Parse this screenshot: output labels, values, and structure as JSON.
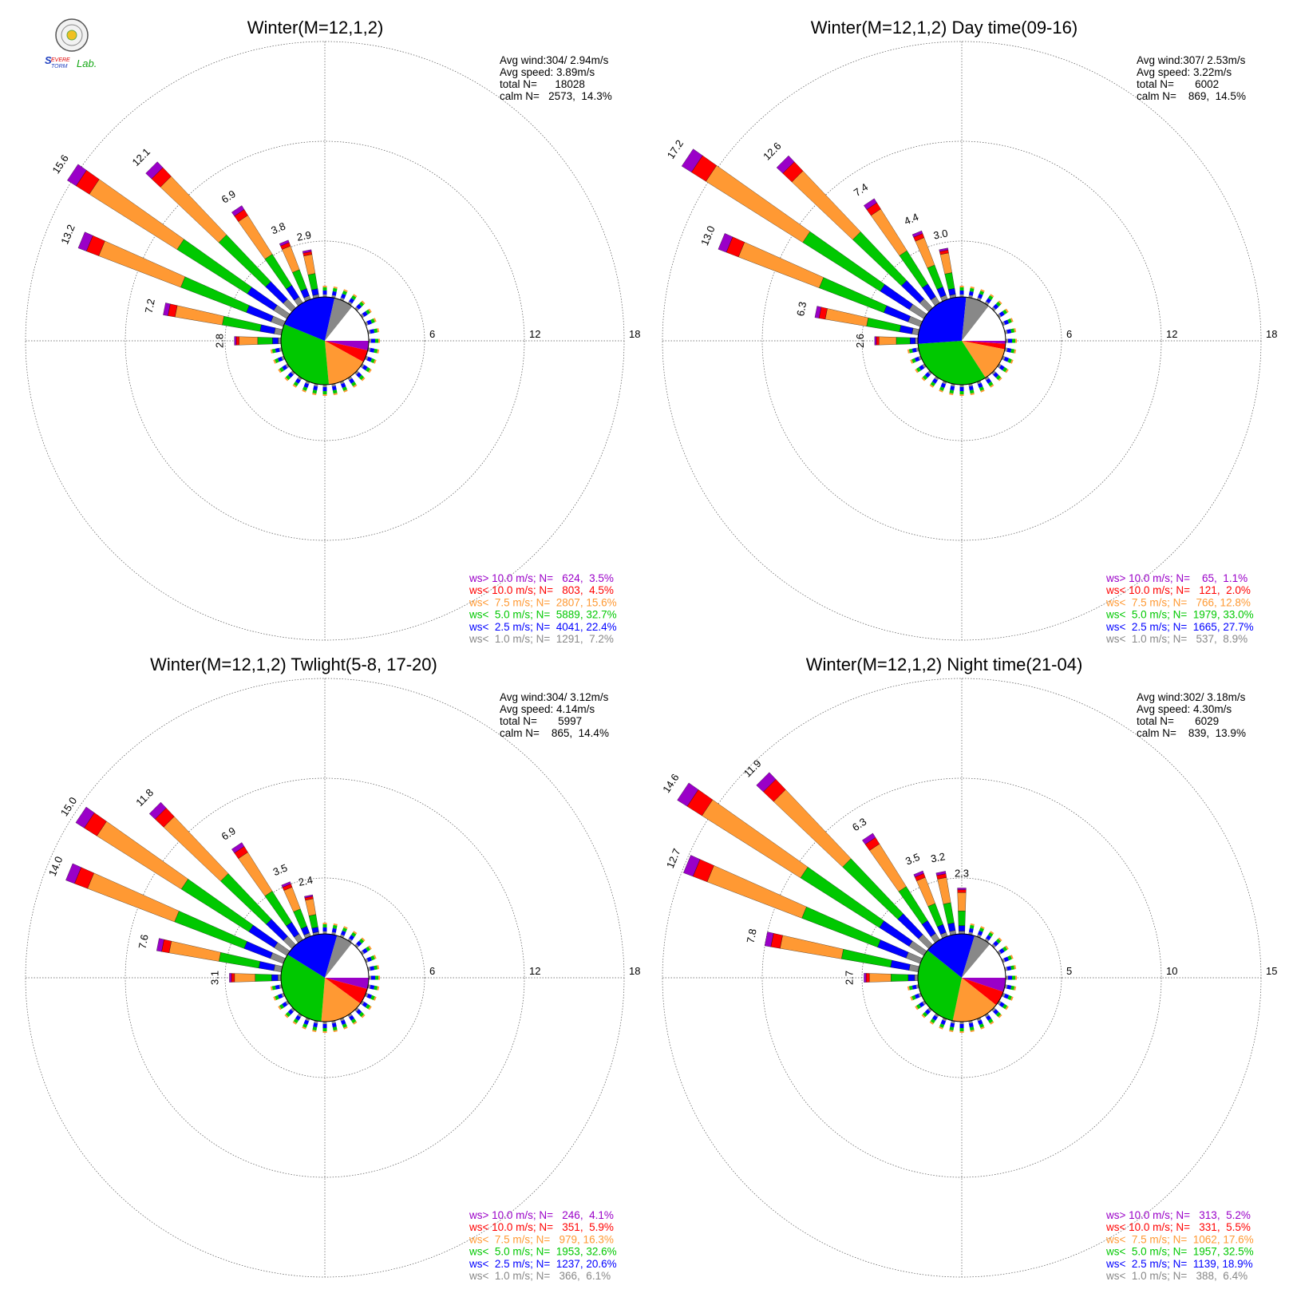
{
  "logo": {
    "text": "SEVERE STORM Lab.",
    "colors": [
      "#1f3fbf",
      "#e00000",
      "#15a815"
    ]
  },
  "colors": {
    "ws_gt_10": "#9a00c8",
    "ws_lt_10": "#ff0000",
    "ws_lt_7_5": "#ff9933",
    "ws_lt_5": "#00c800",
    "ws_lt_2_5": "#0000ff",
    "ws_lt_1": "#888888",
    "calm": "#ffffff",
    "grid": "#999999"
  },
  "chart_data": [
    {
      "type": "wind-rose",
      "title": "Winter(M=12,1,2)",
      "rings": [
        6,
        12,
        18
      ],
      "info": {
        "avg_wind": "Avg wind:304/ 2.94m/s",
        "avg_speed": "Avg speed: 3.89m/s",
        "total": "total N=      18028",
        "calm": "calm N=   2573,  14.3%"
      },
      "bar_labels": [
        {
          "dir": 292.5,
          "value": "13.2"
        },
        {
          "dir": 303.75,
          "value": "15.6"
        },
        {
          "dir": 315,
          "value": "12.1"
        },
        {
          "dir": 326.25,
          "value": "6.9"
        },
        {
          "dir": 337.5,
          "value": "3.8"
        },
        {
          "dir": 348.75,
          "value": "2.9"
        },
        {
          "dir": 281.25,
          "value": "7.2"
        },
        {
          "dir": 270,
          "value": "2.8"
        }
      ],
      "petals": [
        {
          "dir": 270,
          "total": 2.8
        },
        {
          "dir": 281.25,
          "total": 7.2
        },
        {
          "dir": 292.5,
          "total": 13.2
        },
        {
          "dir": 303.75,
          "total": 15.6
        },
        {
          "dir": 315,
          "total": 12.1
        },
        {
          "dir": 326.25,
          "total": 6.9
        },
        {
          "dir": 337.5,
          "total": 3.8
        },
        {
          "dir": 348.75,
          "total": 2.9
        }
      ],
      "pie": [
        3.5,
        4.5,
        15.6,
        32.7,
        22.4,
        7.2,
        14.3
      ],
      "legend": [
        {
          "label": "ws> 10.0 m/s; N=   624,  3.5%",
          "key": "ws_gt_10"
        },
        {
          "label": "ws< 10.0 m/s; N=   803,  4.5%",
          "key": "ws_lt_10"
        },
        {
          "label": "ws<  7.5 m/s; N=  2807, 15.6%",
          "key": "ws_lt_7_5"
        },
        {
          "label": "ws<  5.0 m/s; N=  5889, 32.7%",
          "key": "ws_lt_5"
        },
        {
          "label": "ws<  2.5 m/s; N=  4041, 22.4%",
          "key": "ws_lt_2_5"
        },
        {
          "label": "ws<  1.0 m/s; N=  1291,  7.2%",
          "key": "ws_lt_1"
        }
      ]
    },
    {
      "type": "wind-rose",
      "title": "Winter(M=12,1,2) Day time(09-16)",
      "rings": [
        6,
        12,
        18
      ],
      "info": {
        "avg_wind": "Avg wind:307/ 2.53m/s",
        "avg_speed": "Avg speed: 3.22m/s",
        "total": "total N=       6002",
        "calm": "calm N=    869,  14.5%"
      },
      "bar_labels": [
        {
          "dir": 292.5,
          "value": "13.0"
        },
        {
          "dir": 303.75,
          "value": "17.2"
        },
        {
          "dir": 315,
          "value": "12.6"
        },
        {
          "dir": 326.25,
          "value": "7.4"
        },
        {
          "dir": 337.5,
          "value": "4.4"
        },
        {
          "dir": 348.75,
          "value": "3.0"
        },
        {
          "dir": 281.25,
          "value": "6.3"
        },
        {
          "dir": 270,
          "value": "2.6"
        }
      ],
      "petals": [
        {
          "dir": 270,
          "total": 2.6
        },
        {
          "dir": 281.25,
          "total": 6.3
        },
        {
          "dir": 292.5,
          "total": 13.0
        },
        {
          "dir": 303.75,
          "total": 17.2
        },
        {
          "dir": 315,
          "total": 12.6
        },
        {
          "dir": 326.25,
          "total": 7.4
        },
        {
          "dir": 337.5,
          "total": 4.4
        },
        {
          "dir": 348.75,
          "total": 3.0
        }
      ],
      "pie": [
        1.1,
        2.0,
        12.8,
        33.0,
        27.7,
        8.9,
        14.5
      ],
      "legend": [
        {
          "label": "ws> 10.0 m/s; N=    65,  1.1%",
          "key": "ws_gt_10"
        },
        {
          "label": "ws< 10.0 m/s; N=   121,  2.0%",
          "key": "ws_lt_10"
        },
        {
          "label": "ws<  7.5 m/s; N=   766, 12.8%",
          "key": "ws_lt_7_5"
        },
        {
          "label": "ws<  5.0 m/s; N=  1979, 33.0%",
          "key": "ws_lt_5"
        },
        {
          "label": "ws<  2.5 m/s; N=  1665, 27.7%",
          "key": "ws_lt_2_5"
        },
        {
          "label": "ws<  1.0 m/s; N=   537,  8.9%",
          "key": "ws_lt_1"
        }
      ]
    },
    {
      "type": "wind-rose",
      "title": "Winter(M=12,1,2) Twlight(5-8, 17-20)",
      "rings": [
        6,
        12,
        18
      ],
      "info": {
        "avg_wind": "Avg wind:304/ 3.12m/s",
        "avg_speed": "Avg speed: 4.14m/s",
        "total": "total N=       5997",
        "calm": "calm N=    865,  14.4%"
      },
      "bar_labels": [
        {
          "dir": 292.5,
          "value": "14.0"
        },
        {
          "dir": 303.75,
          "value": "15.0"
        },
        {
          "dir": 315,
          "value": "11.8"
        },
        {
          "dir": 326.25,
          "value": "6.9"
        },
        {
          "dir": 337.5,
          "value": "3.5"
        },
        {
          "dir": 348.75,
          "value": "2.4"
        },
        {
          "dir": 281.25,
          "value": "7.6"
        },
        {
          "dir": 270,
          "value": "3.1"
        }
      ],
      "petals": [
        {
          "dir": 270,
          "total": 3.1
        },
        {
          "dir": 281.25,
          "total": 7.6
        },
        {
          "dir": 292.5,
          "total": 14.0
        },
        {
          "dir": 303.75,
          "total": 15.0
        },
        {
          "dir": 315,
          "total": 11.8
        },
        {
          "dir": 326.25,
          "total": 6.9
        },
        {
          "dir": 337.5,
          "total": 3.5
        },
        {
          "dir": 348.75,
          "total": 2.4
        }
      ],
      "pie": [
        4.1,
        5.9,
        16.3,
        32.6,
        20.6,
        6.1,
        14.4
      ],
      "legend": [
        {
          "label": "ws> 10.0 m/s; N=   246,  4.1%",
          "key": "ws_gt_10"
        },
        {
          "label": "ws< 10.0 m/s; N=   351,  5.9%",
          "key": "ws_lt_10"
        },
        {
          "label": "ws<  7.5 m/s; N=   979, 16.3%",
          "key": "ws_lt_7_5"
        },
        {
          "label": "ws<  5.0 m/s; N=  1953, 32.6%",
          "key": "ws_lt_5"
        },
        {
          "label": "ws<  2.5 m/s; N=  1237, 20.6%",
          "key": "ws_lt_2_5"
        },
        {
          "label": "ws<  1.0 m/s; N=   366,  6.1%",
          "key": "ws_lt_1"
        }
      ]
    },
    {
      "type": "wind-rose",
      "title": "Winter(M=12,1,2) Night time(21-04)",
      "rings": [
        5,
        10,
        15
      ],
      "info": {
        "avg_wind": "Avg wind:302/ 3.18m/s",
        "avg_speed": "Avg speed: 4.30m/s",
        "total": "total N=       6029",
        "calm": "calm N=    839,  13.9%"
      },
      "bar_labels": [
        {
          "dir": 292.5,
          "value": "12.7"
        },
        {
          "dir": 303.75,
          "value": "14.6"
        },
        {
          "dir": 315,
          "value": "11.9"
        },
        {
          "dir": 326.25,
          "value": "6.3"
        },
        {
          "dir": 337.5,
          "value": "3.5"
        },
        {
          "dir": 348.75,
          "value": "3.2"
        },
        {
          "dir": 0,
          "value": "2.3"
        },
        {
          "dir": 281.25,
          "value": "7.8"
        },
        {
          "dir": 270,
          "value": "2.7"
        }
      ],
      "petals": [
        {
          "dir": 270,
          "total": 2.7
        },
        {
          "dir": 281.25,
          "total": 7.8
        },
        {
          "dir": 292.5,
          "total": 12.7
        },
        {
          "dir": 303.75,
          "total": 14.6
        },
        {
          "dir": 315,
          "total": 11.9
        },
        {
          "dir": 326.25,
          "total": 6.3
        },
        {
          "dir": 337.5,
          "total": 3.5
        },
        {
          "dir": 348.75,
          "total": 3.2
        },
        {
          "dir": 0,
          "total": 2.3
        }
      ],
      "pie": [
        5.2,
        5.5,
        17.6,
        32.5,
        18.9,
        6.4,
        13.9
      ],
      "legend": [
        {
          "label": "ws> 10.0 m/s; N=   313,  5.2%",
          "key": "ws_gt_10"
        },
        {
          "label": "ws< 10.0 m/s; N=   331,  5.5%",
          "key": "ws_lt_10"
        },
        {
          "label": "ws<  7.5 m/s; N=  1062, 17.6%",
          "key": "ws_lt_7_5"
        },
        {
          "label": "ws<  5.0 m/s; N=  1957, 32.5%",
          "key": "ws_lt_5"
        },
        {
          "label": "ws<  2.5 m/s; N=  1139, 18.9%",
          "key": "ws_lt_2_5"
        },
        {
          "label": "ws<  1.0 m/s; N=   388,  6.4%",
          "key": "ws_lt_1"
        }
      ]
    }
  ]
}
